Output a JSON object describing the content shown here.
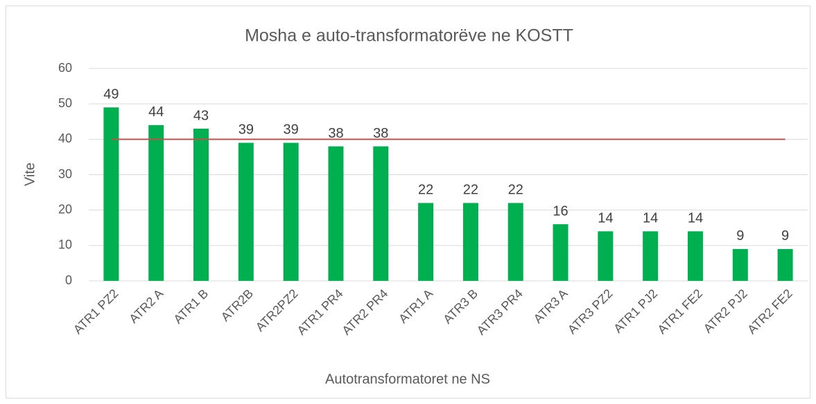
{
  "chart_data": {
    "type": "bar",
    "title": "Mosha e auto-transformatorëve ne KOSTT",
    "x_label": "Autotransformatoret ne NS",
    "y_label": "Vite",
    "categories": [
      "ATR1 PZ2",
      "ATR2 A",
      "ATR1 B",
      "ATR2B",
      "ATR2PZ2",
      "ATR1 PR4",
      "ATR2 PR4",
      "ATR1 A",
      "ATR3  B",
      "ATR3 PR4",
      "ATR3  A",
      "ATR3 PZ2",
      "ATR1 PJ2",
      "ATR1 FE2",
      "ATR2 PJ2",
      "ATR2 FE2"
    ],
    "values": [
      49,
      44,
      43,
      39,
      39,
      38,
      38,
      22,
      22,
      22,
      16,
      14,
      14,
      14,
      9,
      9
    ],
    "color": "#00b050",
    "reference_line": {
      "value": 40,
      "color": "#c0504d"
    },
    "ylim": [
      0,
      60
    ],
    "yticks": [
      0,
      10,
      20,
      30,
      40,
      50,
      60
    ],
    "grid": true
  }
}
